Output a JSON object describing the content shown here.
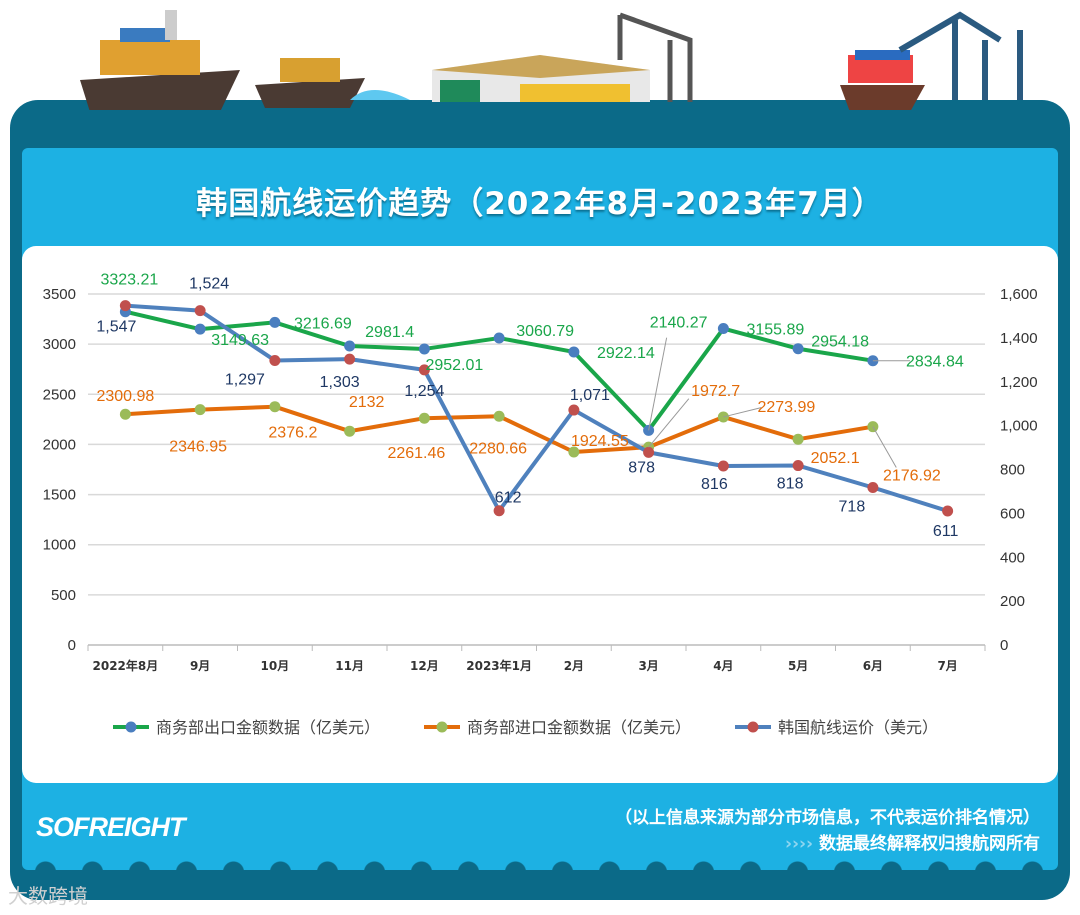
{
  "title": "韩国航线运价趋势（2022年8月-2023年7月）",
  "footer": {
    "logo": "SOFREIGHT",
    "note": "（以上信息来源为部分市场信息，不代表运价排名情况）",
    "copyright": "数据最终解释权归搜航网所有",
    "chevrons": "››››",
    "watermark": "大数跨境"
  },
  "chart_data": {
    "type": "line",
    "categories": [
      "2022年8月",
      "9月",
      "10月",
      "11月",
      "12月",
      "2023年1月",
      "2月",
      "3月",
      "4月",
      "5月",
      "6月",
      "7月"
    ],
    "left_axis": {
      "ylim": [
        0,
        3500
      ],
      "ticks": [
        "0",
        "500",
        "1000",
        "1500",
        "2000",
        "2500",
        "3000",
        "3500"
      ]
    },
    "right_axis": {
      "ylim": [
        0,
        1600
      ],
      "ticks": [
        "0",
        "200",
        "400",
        "600",
        "800",
        "1,000",
        "1,200",
        "1,400",
        "1,600"
      ]
    },
    "grid": true,
    "legend_position": "bottom",
    "series": [
      {
        "name": "商务部出口金额数据（亿美元）",
        "axis": "left",
        "line_color": "#1aa64a",
        "marker_color": "#4a7ebf",
        "label_color": "#1aa64a",
        "values": [
          3323.21,
          3149.63,
          3216.69,
          2981.4,
          2952.01,
          3060.79,
          2922.14,
          2140.27,
          3155.89,
          2954.18,
          2834.84,
          null
        ],
        "labels": [
          "3323.21",
          "3149.63",
          "3216.69",
          "2981.4",
          "2952.01",
          "3060.79",
          "2922.14",
          "2140.27",
          "3155.89",
          "2954.18",
          "2834.84",
          ""
        ]
      },
      {
        "name": "商务部进口金额数据（亿美元）",
        "axis": "left",
        "line_color": "#e36c0a",
        "marker_color": "#9bbb59",
        "label_color": "#e36c0a",
        "values": [
          2300.98,
          2346.95,
          2376.2,
          2132,
          2261.46,
          2280.66,
          1924.55,
          1972.7,
          2273.99,
          2052.1,
          2176.92,
          null
        ],
        "labels": [
          "2300.98",
          "2346.95",
          "2376.2",
          "2132",
          "2261.46",
          "2280.66",
          "1924.55",
          "1972.7",
          "2273.99",
          "2052.1",
          "2176.92",
          ""
        ]
      },
      {
        "name": "韩国航线运价（美元）",
        "axis": "right",
        "line_color": "#4f81bd",
        "marker_color": "#c0504d",
        "label_color": "#1f3864",
        "values": [
          1547,
          1524,
          1297,
          1303,
          1254,
          612,
          1071,
          878,
          816,
          818,
          718,
          611
        ],
        "labels": [
          "1,547",
          "1,524",
          "1,297",
          "1,303",
          "1,254",
          "612",
          "1,071",
          "878",
          "816",
          "818",
          "718",
          "611"
        ]
      }
    ]
  }
}
